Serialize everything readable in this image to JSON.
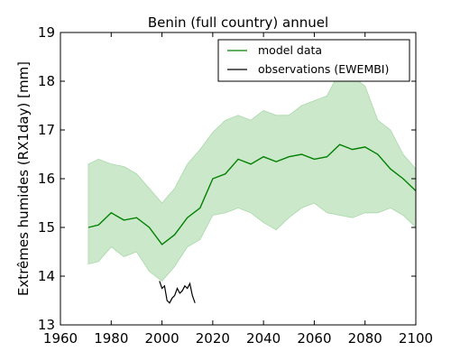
{
  "chart_data": {
    "type": "line",
    "title": "Benin (full country) annuel",
    "xlabel": "",
    "ylabel": "Extrêmes humides (RX1day) [mm]",
    "xlim": [
      1960,
      2100
    ],
    "ylim": [
      13,
      19
    ],
    "xticks": [
      1960,
      1980,
      2000,
      2020,
      2040,
      2060,
      2080,
      2100
    ],
    "yticks": [
      13,
      14,
      15,
      16,
      17,
      18,
      19
    ],
    "grid": false,
    "legend_position": "top-right",
    "colors": {
      "model": "#008000",
      "model_band": "#a9d8a9",
      "observations": "#000000"
    },
    "series": [
      {
        "name": "model data",
        "x": [
          1971,
          1975,
          1980,
          1985,
          1990,
          1995,
          2000,
          2005,
          2010,
          2015,
          2020,
          2025,
          2030,
          2035,
          2040,
          2045,
          2050,
          2055,
          2060,
          2065,
          2070,
          2075,
          2080,
          2085,
          2090,
          2095,
          2100
        ],
        "values": [
          15.0,
          15.05,
          15.3,
          15.15,
          15.2,
          15.0,
          14.65,
          14.85,
          15.2,
          15.4,
          16.0,
          16.1,
          16.4,
          16.3,
          16.45,
          16.35,
          16.45,
          16.5,
          16.4,
          16.45,
          16.7,
          16.6,
          16.65,
          16.5,
          16.2,
          16.0,
          15.75
        ],
        "lower": [
          14.25,
          14.3,
          14.6,
          14.4,
          14.5,
          14.1,
          13.9,
          14.2,
          14.6,
          14.75,
          15.25,
          15.3,
          15.4,
          15.3,
          15.1,
          14.95,
          15.2,
          15.4,
          15.5,
          15.3,
          15.25,
          15.2,
          15.3,
          15.3,
          15.4,
          15.25,
          15.0
        ],
        "upper": [
          16.3,
          16.4,
          16.3,
          16.25,
          16.1,
          15.8,
          15.5,
          15.8,
          16.3,
          16.6,
          16.95,
          17.2,
          17.3,
          17.2,
          17.4,
          17.3,
          17.3,
          17.5,
          17.6,
          17.7,
          18.2,
          18.1,
          17.9,
          17.2,
          17.0,
          16.5,
          16.2
        ]
      },
      {
        "name": "observations (EWEMBI)",
        "x": [
          1999,
          2000,
          2001,
          2002,
          2003,
          2004,
          2005,
          2006,
          2007,
          2008,
          2009,
          2010,
          2011,
          2012,
          2013
        ],
        "values": [
          13.9,
          13.75,
          13.8,
          13.5,
          13.45,
          13.55,
          13.6,
          13.75,
          13.65,
          13.7,
          13.8,
          13.75,
          13.85,
          13.6,
          13.45
        ]
      }
    ]
  }
}
